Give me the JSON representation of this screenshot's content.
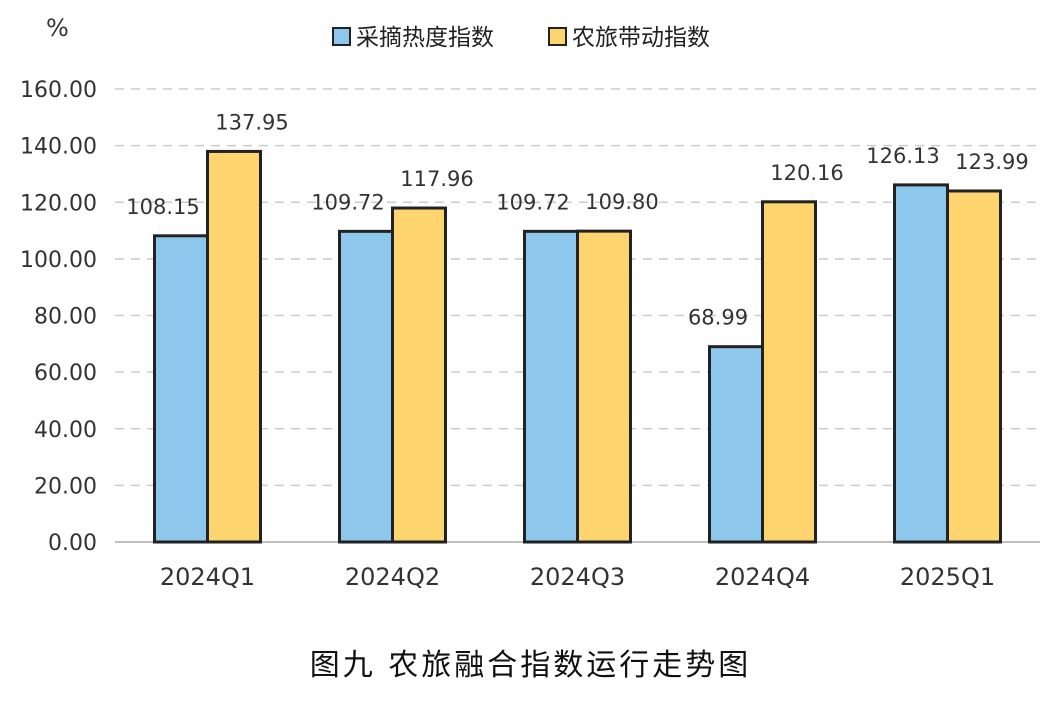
{
  "chart_data": {
    "type": "bar",
    "title": "图九  农旅融合指数运行走势图",
    "unit": "%",
    "categories": [
      "2024Q1",
      "2024Q2",
      "2024Q3",
      "2024Q4",
      "2025Q1"
    ],
    "series": [
      {
        "name": "采摘热度指数",
        "values": [
          108.15,
          109.72,
          109.72,
          68.99,
          126.13
        ],
        "color": "#8DC8EC"
      },
      {
        "name": "农旅带动指数",
        "values": [
          137.95,
          117.96,
          109.8,
          120.16,
          123.99
        ],
        "color": "#FDD46E"
      }
    ],
    "ylim": [
      0,
      160
    ],
    "yticks": [
      "0.00",
      "20.00",
      "40.00",
      "60.00",
      "80.00",
      "100.00",
      "120.00",
      "140.00",
      "160.00"
    ],
    "data_labels": [
      [
        "108.15",
        "109.72",
        "109.72",
        "68.99",
        "126.13"
      ],
      [
        "137.95",
        "117.96",
        "109.80",
        "120.16",
        "123.99"
      ]
    ],
    "grid": true,
    "legend": "top-center",
    "bar_border_color": "#222222",
    "grid_color": "#CCCCCC"
  }
}
